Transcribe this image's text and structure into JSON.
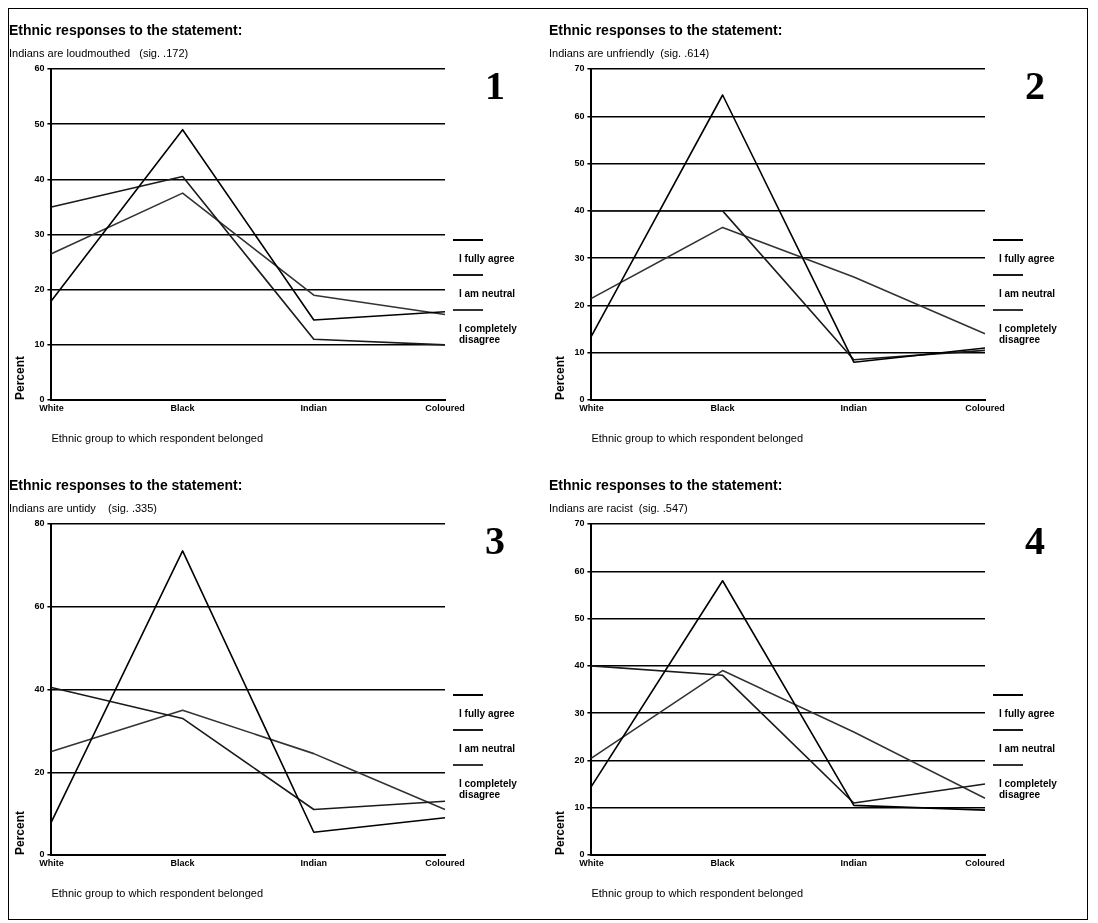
{
  "chart_data": [
    {
      "type": "line",
      "title": "Ethnic responses to the statement:",
      "subtitle": "Indians are loudmouthed   (sig. .172)",
      "xlabel": "Ethnic group to which respondent belonged",
      "ylabel": "Percent",
      "annotations": [
        "1"
      ],
      "categories": [
        "White",
        "Black",
        "Indian",
        "Coloured"
      ],
      "ylim": [
        0,
        60
      ],
      "yticks": [
        0,
        10,
        20,
        30,
        40,
        50,
        60
      ],
      "grid": "y",
      "legend": "right",
      "marker": "none",
      "line_style": "solid",
      "series": [
        {
          "name": "I fully agree",
          "color": "#000000",
          "values": [
            18,
            49,
            14.5,
            16
          ]
        },
        {
          "name": "I am neutral",
          "color": "#1a1a1a",
          "values": [
            35,
            40.5,
            11,
            10
          ]
        },
        {
          "name": "I completely disagree",
          "color": "#333333",
          "values": [
            26.5,
            37.5,
            19,
            15.5
          ]
        }
      ]
    },
    {
      "type": "line",
      "title": "Ethnic responses to the statement:",
      "subtitle": "Indians are unfriendly  (sig. .614)",
      "xlabel": "Ethnic group to which respondent belonged",
      "ylabel": "Percent",
      "annotations": [
        "2"
      ],
      "categories": [
        "White",
        "Black",
        "Indian",
        "Coloured"
      ],
      "ylim": [
        0,
        70
      ],
      "yticks": [
        0,
        10,
        20,
        30,
        40,
        50,
        60,
        70
      ],
      "grid": "y",
      "legend": "right",
      "marker": "none",
      "line_style": "solid",
      "series": [
        {
          "name": "I fully agree",
          "color": "#000000",
          "values": [
            13.5,
            64.5,
            8,
            11
          ]
        },
        {
          "name": "I am neutral",
          "color": "#1a1a1a",
          "values": [
            40,
            40,
            8.5,
            10.5
          ]
        },
        {
          "name": "I completely disagree",
          "color": "#333333",
          "values": [
            21.5,
            36.5,
            26,
            14
          ]
        }
      ]
    },
    {
      "type": "line",
      "title": "Ethnic responses to the statement:",
      "subtitle": "Indians are untidy    (sig. .335)",
      "xlabel": "Ethnic group to which respondent belonged",
      "ylabel": "Percent",
      "annotations": [
        "3"
      ],
      "categories": [
        "White",
        "Black",
        "Indian",
        "Coloured"
      ],
      "ylim": [
        0,
        80
      ],
      "yticks": [
        0,
        20,
        40,
        60,
        80
      ],
      "grid": "y",
      "legend": "right",
      "marker": "none",
      "line_style": "solid",
      "series": [
        {
          "name": "I fully agree",
          "color": "#000000",
          "values": [
            8,
            73.5,
            5.5,
            9
          ]
        },
        {
          "name": "I am neutral",
          "color": "#1a1a1a",
          "values": [
            40.5,
            33,
            11,
            13
          ]
        },
        {
          "name": "I completely disagree",
          "color": "#333333",
          "values": [
            25,
            35,
            24.5,
            11
          ]
        }
      ]
    },
    {
      "type": "line",
      "title": "Ethnic responses to the statement:",
      "subtitle": "Indians are racist  (sig. .547)",
      "xlabel": "Ethnic group to which respondent belonged",
      "ylabel": "Percent",
      "annotations": [
        "4"
      ],
      "categories": [
        "White",
        "Black",
        "Indian",
        "Coloured"
      ],
      "ylim": [
        0,
        70
      ],
      "yticks": [
        0,
        10,
        20,
        30,
        40,
        50,
        60,
        70
      ],
      "grid": "y",
      "legend": "right",
      "marker": "none",
      "line_style": "solid",
      "series": [
        {
          "name": "I fully agree",
          "color": "#000000",
          "values": [
            14.5,
            58,
            10.5,
            9.5
          ]
        },
        {
          "name": "I am neutral",
          "color": "#1a1a1a",
          "values": [
            40,
            38,
            11,
            15
          ]
        },
        {
          "name": "I completely disagree",
          "color": "#333333",
          "values": [
            20.5,
            39,
            26,
            12
          ]
        }
      ]
    }
  ]
}
